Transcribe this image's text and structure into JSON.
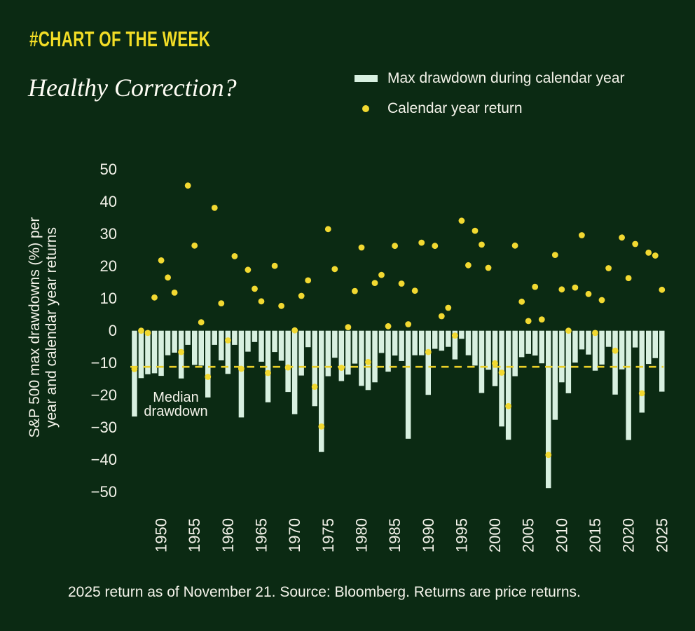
{
  "header": {
    "kicker": "#CHART OF THE WEEK",
    "title": "Healthy Correction?"
  },
  "legend": {
    "items": [
      {
        "swatch": "bar-swatch",
        "label": "Max drawdown during calendar year"
      },
      {
        "swatch": "dot-swatch",
        "label": "Calendar year return"
      }
    ]
  },
  "y_axis_title": {
    "line1": "S&P 500 max drawdowns (%) per",
    "line2": "year and calendar year returns"
  },
  "median_label": {
    "line1": "Median",
    "line2": "drawdown"
  },
  "footer": "2025 return as of November 21. Source: Bloomberg. Returns are price returns.",
  "colors": {
    "background": "#0b2a13",
    "bar": "#d8f0e0",
    "dot": "#f2d931",
    "accent_yellow": "#f2dd26",
    "median_line": "#e9cf28",
    "text": "#f4f3ea"
  },
  "chart_data": {
    "type": "bar",
    "note": "bars = max intra-year drawdown (%), dots = calendar year price return (%)",
    "x": [
      1946,
      1947,
      1948,
      1949,
      1950,
      1951,
      1952,
      1953,
      1954,
      1955,
      1956,
      1957,
      1958,
      1959,
      1960,
      1961,
      1962,
      1963,
      1964,
      1965,
      1966,
      1967,
      1968,
      1969,
      1970,
      1971,
      1972,
      1973,
      1974,
      1975,
      1976,
      1977,
      1978,
      1979,
      1980,
      1981,
      1982,
      1983,
      1984,
      1985,
      1986,
      1987,
      1988,
      1989,
      1990,
      1991,
      1992,
      1993,
      1994,
      1995,
      1996,
      1997,
      1998,
      1999,
      2000,
      2001,
      2002,
      2003,
      2004,
      2005,
      2006,
      2007,
      2008,
      2009,
      2010,
      2011,
      2012,
      2013,
      2014,
      2015,
      2016,
      2017,
      2018,
      2019,
      2020,
      2021,
      2022,
      2023,
      2024,
      2025
    ],
    "series": [
      {
        "name": "Max drawdown during calendar year",
        "type": "bar",
        "values": [
          -26.6,
          -14.7,
          -13.5,
          -13.2,
          -14.0,
          -7.6,
          -6.8,
          -14.8,
          -4.4,
          -10.6,
          -10.8,
          -20.7,
          -4.4,
          -9.2,
          -13.4,
          -4.4,
          -26.9,
          -6.5,
          -3.5,
          -9.6,
          -22.2,
          -6.6,
          -9.3,
          -19.0,
          -25.9,
          -13.9,
          -5.1,
          -23.4,
          -37.6,
          -14.1,
          -8.4,
          -15.6,
          -13.6,
          -10.2,
          -17.1,
          -18.4,
          -16.0,
          -6.9,
          -12.7,
          -7.7,
          -9.4,
          -33.5,
          -7.6,
          -7.6,
          -19.9,
          -5.6,
          -6.2,
          -5.0,
          -8.9,
          -2.5,
          -7.6,
          -10.8,
          -19.3,
          -12.1,
          -17.2,
          -29.7,
          -33.8,
          -14.1,
          -8.2,
          -7.2,
          -7.7,
          -10.1,
          -48.8,
          -27.6,
          -16.0,
          -19.4,
          -9.9,
          -5.8,
          -7.4,
          -12.4,
          -10.5,
          -5.0,
          -19.8,
          -12.0,
          -33.9,
          -5.2,
          -25.4,
          -10.3,
          -8.5,
          -18.9
        ]
      },
      {
        "name": "Calendar year return",
        "type": "scatter",
        "values": [
          -11.9,
          0.0,
          -0.7,
          10.3,
          21.8,
          16.5,
          11.8,
          -6.6,
          45.0,
          26.4,
          2.6,
          -14.3,
          38.1,
          8.5,
          -3.0,
          23.1,
          -11.8,
          18.9,
          13.0,
          9.1,
          -13.1,
          20.1,
          7.7,
          -11.4,
          0.1,
          10.8,
          15.6,
          -17.4,
          -29.7,
          31.5,
          19.1,
          -11.5,
          1.1,
          12.3,
          25.8,
          -9.7,
          14.8,
          17.3,
          1.4,
          26.3,
          14.6,
          2.0,
          12.4,
          27.3,
          -6.6,
          26.3,
          4.5,
          7.1,
          -1.5,
          34.1,
          20.3,
          31.0,
          26.7,
          19.5,
          -10.1,
          -13.0,
          -23.4,
          26.4,
          9.0,
          3.0,
          13.6,
          3.5,
          -38.5,
          23.5,
          12.8,
          0.0,
          13.4,
          29.6,
          11.4,
          -0.7,
          9.5,
          19.4,
          -6.2,
          28.9,
          16.3,
          26.9,
          -19.4,
          24.2,
          23.3,
          12.7
        ]
      }
    ],
    "median_drawdown": -11.2,
    "ylim": [
      -50,
      50
    ],
    "yticks": [
      50,
      40,
      30,
      20,
      10,
      0,
      -10,
      -20,
      -30,
      -40,
      -50
    ],
    "xticks": [
      1950,
      1955,
      1960,
      1965,
      1970,
      1975,
      1980,
      1985,
      1990,
      1995,
      2000,
      2005,
      2010,
      2015,
      2020,
      2025
    ],
    "grid": false,
    "legend_position": "top-right"
  }
}
